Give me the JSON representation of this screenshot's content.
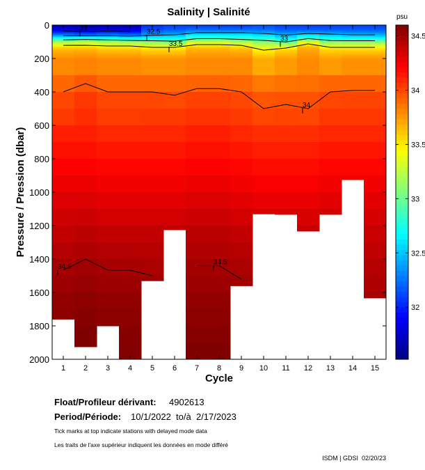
{
  "chart_data": {
    "type": "heatmap",
    "title": "Salinity | Salinité",
    "xlabel": "Cycle",
    "ylabel": "Pressure / Pression (dbar)",
    "xlim": [
      0.5,
      15.5
    ],
    "ylim": [
      0,
      2000
    ],
    "y_reversed": true,
    "x_ticks": [
      1,
      2,
      3,
      4,
      5,
      6,
      7,
      8,
      9,
      10,
      11,
      12,
      13,
      14,
      15
    ],
    "y_ticks": [
      0,
      200,
      400,
      600,
      800,
      1000,
      1200,
      1400,
      1600,
      1800,
      2000
    ],
    "colorbar": {
      "unit": "psu",
      "range": [
        31.52,
        34.6
      ],
      "ticks": [
        32,
        32.5,
        33,
        33.5,
        34,
        34.5
      ],
      "tick_labels": [
        "32",
        "32.5",
        "33",
        "33.5",
        "34",
        "34.5"
      ],
      "colormap": "jet"
    },
    "delayed_mode_cycles": [
      1,
      2,
      3,
      4,
      5,
      6,
      7,
      8,
      9,
      10,
      11,
      12,
      13,
      14,
      15
    ],
    "max_pressure": [
      1760,
      1925,
      1800,
      2000,
      1530,
      1225,
      2000,
      2000,
      1560,
      1130,
      1133,
      1233,
      1133,
      925,
      1633
    ],
    "depths": [
      0,
      25,
      50,
      75,
      100,
      125,
      150,
      200,
      300,
      400,
      500,
      600,
      800,
      1000,
      1200,
      1400,
      1600,
      1800,
      2000
    ],
    "profiles": [
      [
        31.7,
        31.85,
        32.2,
        32.75,
        33.2,
        33.55,
        33.68,
        33.8,
        33.9,
        34.0,
        34.04,
        34.12,
        34.22,
        34.32,
        34.4,
        34.48,
        34.54,
        34.57,
        34.6
      ],
      [
        31.65,
        31.8,
        32.15,
        32.8,
        33.25,
        33.55,
        33.7,
        33.82,
        33.95,
        34.05,
        34.08,
        34.12,
        34.22,
        34.32,
        34.42,
        34.5,
        34.56,
        34.6,
        34.62
      ],
      [
        31.7,
        31.85,
        32.2,
        32.75,
        33.2,
        33.5,
        33.65,
        33.8,
        33.9,
        34.0,
        34.03,
        34.1,
        34.2,
        34.3,
        34.4,
        34.48,
        34.54,
        34.58,
        34.6
      ],
      [
        31.68,
        31.82,
        32.15,
        32.7,
        33.15,
        33.5,
        33.65,
        33.8,
        33.9,
        34.0,
        34.03,
        34.1,
        34.2,
        34.3,
        34.4,
        34.48,
        34.54,
        34.58,
        34.6
      ],
      [
        32.05,
        32.15,
        32.35,
        32.7,
        33.1,
        33.45,
        33.6,
        33.78,
        33.9,
        34.0,
        34.04,
        34.1,
        34.2,
        34.3,
        34.4,
        34.47,
        34.53,
        34.56,
        34.6
      ],
      [
        32.1,
        32.2,
        32.4,
        32.7,
        33.05,
        33.45,
        33.6,
        33.78,
        33.9,
        33.99,
        34.04,
        34.1,
        34.2,
        34.3,
        34.4,
        34.46,
        34.52,
        34.56,
        34.6
      ],
      [
        32.1,
        32.25,
        32.55,
        32.9,
        33.3,
        33.6,
        33.7,
        33.8,
        33.92,
        34.02,
        34.06,
        34.12,
        34.22,
        34.32,
        34.42,
        34.49,
        34.54,
        34.58,
        34.62
      ],
      [
        32.1,
        32.25,
        32.55,
        32.9,
        33.3,
        33.6,
        33.7,
        33.8,
        33.92,
        34.02,
        34.06,
        34.12,
        34.22,
        34.32,
        34.42,
        34.49,
        34.54,
        34.58,
        34.62
      ],
      [
        32.1,
        32.25,
        32.55,
        32.85,
        33.2,
        33.55,
        33.68,
        33.8,
        33.9,
        34.0,
        34.04,
        34.1,
        34.2,
        34.3,
        34.4,
        34.47,
        34.52,
        34.56,
        34.6
      ],
      [
        32.15,
        32.25,
        32.5,
        32.8,
        33.1,
        33.35,
        33.5,
        33.7,
        33.85,
        33.96,
        34.0,
        34.08,
        34.18,
        34.28,
        34.38,
        34.45,
        34.5,
        34.54,
        34.58
      ],
      [
        32.1,
        32.2,
        32.4,
        32.65,
        32.98,
        33.4,
        33.6,
        33.75,
        33.87,
        33.97,
        34.01,
        34.08,
        34.18,
        34.28,
        34.38,
        34.45,
        34.5,
        34.54,
        34.58
      ],
      [
        32.1,
        32.2,
        32.5,
        32.9,
        33.35,
        33.65,
        33.72,
        33.8,
        33.88,
        33.97,
        34.0,
        34.08,
        34.18,
        34.28,
        34.38,
        34.45,
        34.5,
        34.54,
        34.58
      ],
      [
        32.1,
        32.2,
        32.45,
        32.75,
        33.1,
        33.45,
        33.6,
        33.75,
        33.9,
        34.0,
        34.05,
        34.1,
        34.2,
        34.3,
        34.4,
        34.45,
        34.5,
        34.54,
        34.58
      ],
      [
        32.1,
        32.2,
        32.4,
        32.7,
        33.1,
        33.45,
        33.6,
        33.78,
        33.9,
        34.01,
        34.05,
        34.1,
        34.2,
        34.3,
        34.4,
        34.45,
        34.5,
        34.54,
        34.58
      ],
      [
        32.1,
        32.2,
        32.4,
        32.7,
        33.1,
        33.45,
        33.6,
        33.78,
        33.9,
        34.01,
        34.05,
        34.1,
        34.2,
        34.3,
        34.38,
        34.44,
        34.48,
        34.52,
        34.56
      ]
    ],
    "contour_levels": [
      32,
      32.5,
      33,
      33.5,
      34,
      34.5
    ],
    "contour_labels": [
      {
        "text": "32",
        "cycle": 2
      },
      {
        "text": "32.5",
        "cycle": 5
      },
      {
        "text": "33",
        "cycle": 11
      },
      {
        "text": "33.5",
        "cycle": 6
      },
      {
        "text": "34",
        "cycle": 12
      },
      {
        "text": "34.5",
        "cycle": 1
      },
      {
        "text": "34.5",
        "cycle": 8
      }
    ]
  },
  "info": {
    "float_label": "Float/Profileur dérivant:",
    "float_id": "4902613",
    "period_label": "Period/Période:",
    "period_value": "10/1/2022  to/à  2/17/2023",
    "note_en": "Tick marks at top indicate stations with delayed mode data",
    "note_fr": "Les traits de l'axe supérieur indiquent les données en mode différé",
    "credit": "ISDM | GDSI  02/20/23"
  }
}
